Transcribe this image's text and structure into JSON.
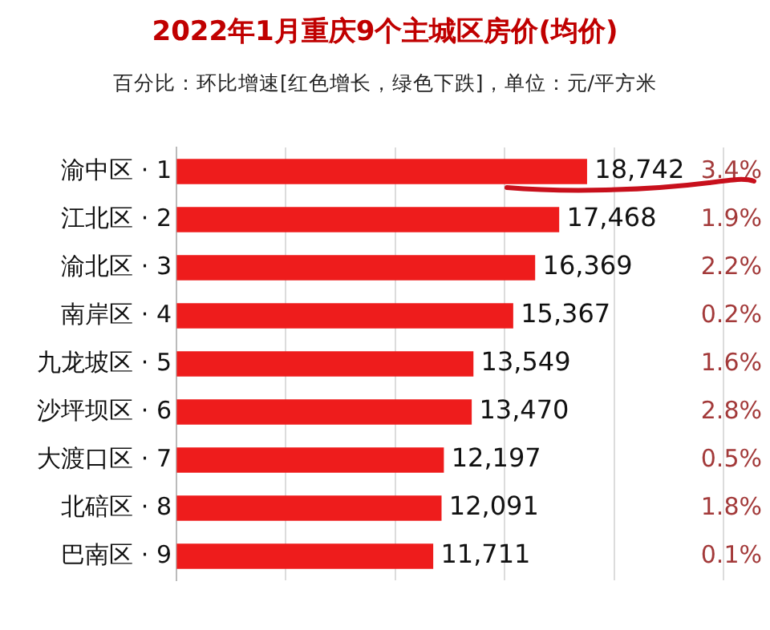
{
  "chart_data": {
    "type": "bar",
    "orientation": "horizontal",
    "title": "2022年1月重庆9个主城区房价(均价)",
    "subtitle": "百分比：环比增速[红色增长，绿色下跌]，单位：元/平方米",
    "categories": [
      "渝中区 · 1",
      "江北区 · 2",
      "渝北区 · 3",
      "南岸区 · 4",
      "九龙坡区 · 5",
      "沙坪坝区 · 6",
      "大渡口区 · 7",
      "北碚区 · 8",
      "巴南区 · 9"
    ],
    "series": [
      {
        "color": "#ee1c1c",
        "values": [
          18742,
          17468,
          16369,
          15367,
          13549,
          13470,
          12197,
          12091,
          11711
        ],
        "value_labels": [
          "18,742",
          "17,468",
          "16,369",
          "15,367",
          "13,549",
          "13,470",
          "12,197",
          "12,091",
          "11,711"
        ]
      }
    ],
    "annotations": [
      "3.4%",
      "1.9%",
      "2.2%",
      "0.2%",
      "1.6%",
      "2.8%",
      "0.5%",
      "1.8%",
      "0.1%"
    ],
    "xlim": [
      0,
      25000
    ],
    "xticks": [
      {
        "value": 0,
        "label": null
      },
      {
        "value": 5000,
        "label": null
      },
      {
        "value": 10000,
        "label": null
      },
      {
        "value": 15000,
        "label": null
      },
      {
        "value": 20000,
        "label": null
      },
      {
        "value": 25000,
        "label": null
      }
    ],
    "tick_labels": "y",
    "grid": "x",
    "legend": false
  }
}
